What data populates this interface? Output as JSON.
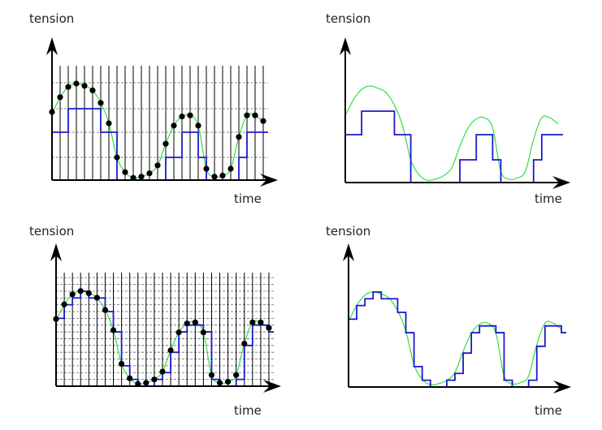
{
  "figure": {
    "description": "Analog-to-digital conversion illustration: sampling and quantization of an analog signal at low and high resolution",
    "colors": {
      "analog_signal": "#33dd44",
      "quantized_signal": "#1a1acc",
      "sample_points": "#000000",
      "axes": "#000000",
      "grid_dashed": "#666666",
      "sample_lines": "#000000"
    }
  },
  "panels": [
    {
      "id": "top-left",
      "y_label": "tension",
      "x_label": "time",
      "shows_samples": true,
      "shows_grid": true,
      "quantization_levels": 4
    },
    {
      "id": "top-right",
      "y_label": "tension",
      "x_label": "time",
      "shows_samples": false,
      "shows_grid": false,
      "quantization_levels": 4
    },
    {
      "id": "bottom-left",
      "y_label": "tension",
      "x_label": "time",
      "shows_samples": true,
      "shows_grid": true,
      "quantization_levels": 16
    },
    {
      "id": "bottom-right",
      "y_label": "tension",
      "x_label": "time",
      "shows_samples": false,
      "shows_grid": false,
      "quantization_levels": 16
    }
  ],
  "chart_data": [
    {
      "type": "line",
      "title": "",
      "xlabel": "time",
      "ylabel": "tension",
      "grid": true,
      "quantization": "2-bit (4 levels)",
      "sample_count": 27,
      "series": [
        {
          "name": "analog signal",
          "style": "smooth green curve"
        },
        {
          "name": "samples",
          "style": "black dots",
          "values": [
            0.6,
            0.73,
            0.82,
            0.85,
            0.83,
            0.79,
            0.68,
            0.5,
            0.2,
            0.07,
            0.02,
            0.03,
            0.06,
            0.13,
            0.32,
            0.48,
            0.56,
            0.57,
            0.48,
            0.1,
            0.03,
            0.04,
            0.1,
            0.38,
            0.57,
            0.57,
            0.52
          ]
        },
        {
          "name": "quantized",
          "style": "blue step",
          "levels": [
            2,
            3,
            3,
            3,
            3,
            3,
            3,
            3,
            2,
            1,
            0,
            0,
            0,
            0,
            0,
            1,
            2,
            2,
            2,
            2,
            0,
            0,
            0,
            0,
            1,
            2,
            2,
            2
          ]
        }
      ]
    },
    {
      "type": "line",
      "title": "",
      "xlabel": "time",
      "ylabel": "tension",
      "grid": false,
      "quantization": "2-bit (4 levels)",
      "series": [
        {
          "name": "analog signal",
          "style": "smooth green curve"
        },
        {
          "name": "quantized",
          "style": "blue step"
        }
      ]
    },
    {
      "type": "line",
      "title": "",
      "xlabel": "time",
      "ylabel": "tension",
      "grid": true,
      "quantization": "4-bit (16 levels)",
      "sample_count": 27,
      "series": [
        {
          "name": "analog signal",
          "style": "smooth green curve"
        },
        {
          "name": "samples",
          "style": "black dots",
          "values": [
            0.6,
            0.73,
            0.82,
            0.85,
            0.83,
            0.79,
            0.68,
            0.5,
            0.2,
            0.07,
            0.02,
            0.03,
            0.06,
            0.13,
            0.32,
            0.48,
            0.56,
            0.57,
            0.48,
            0.1,
            0.03,
            0.04,
            0.1,
            0.38,
            0.57,
            0.57,
            0.52
          ]
        },
        {
          "name": "quantized",
          "style": "blue step"
        }
      ]
    },
    {
      "type": "line",
      "title": "",
      "xlabel": "time",
      "ylabel": "tension",
      "grid": false,
      "quantization": "4-bit (16 levels)",
      "series": [
        {
          "name": "analog signal",
          "style": "smooth green curve"
        },
        {
          "name": "quantized",
          "style": "blue step"
        }
      ]
    }
  ]
}
